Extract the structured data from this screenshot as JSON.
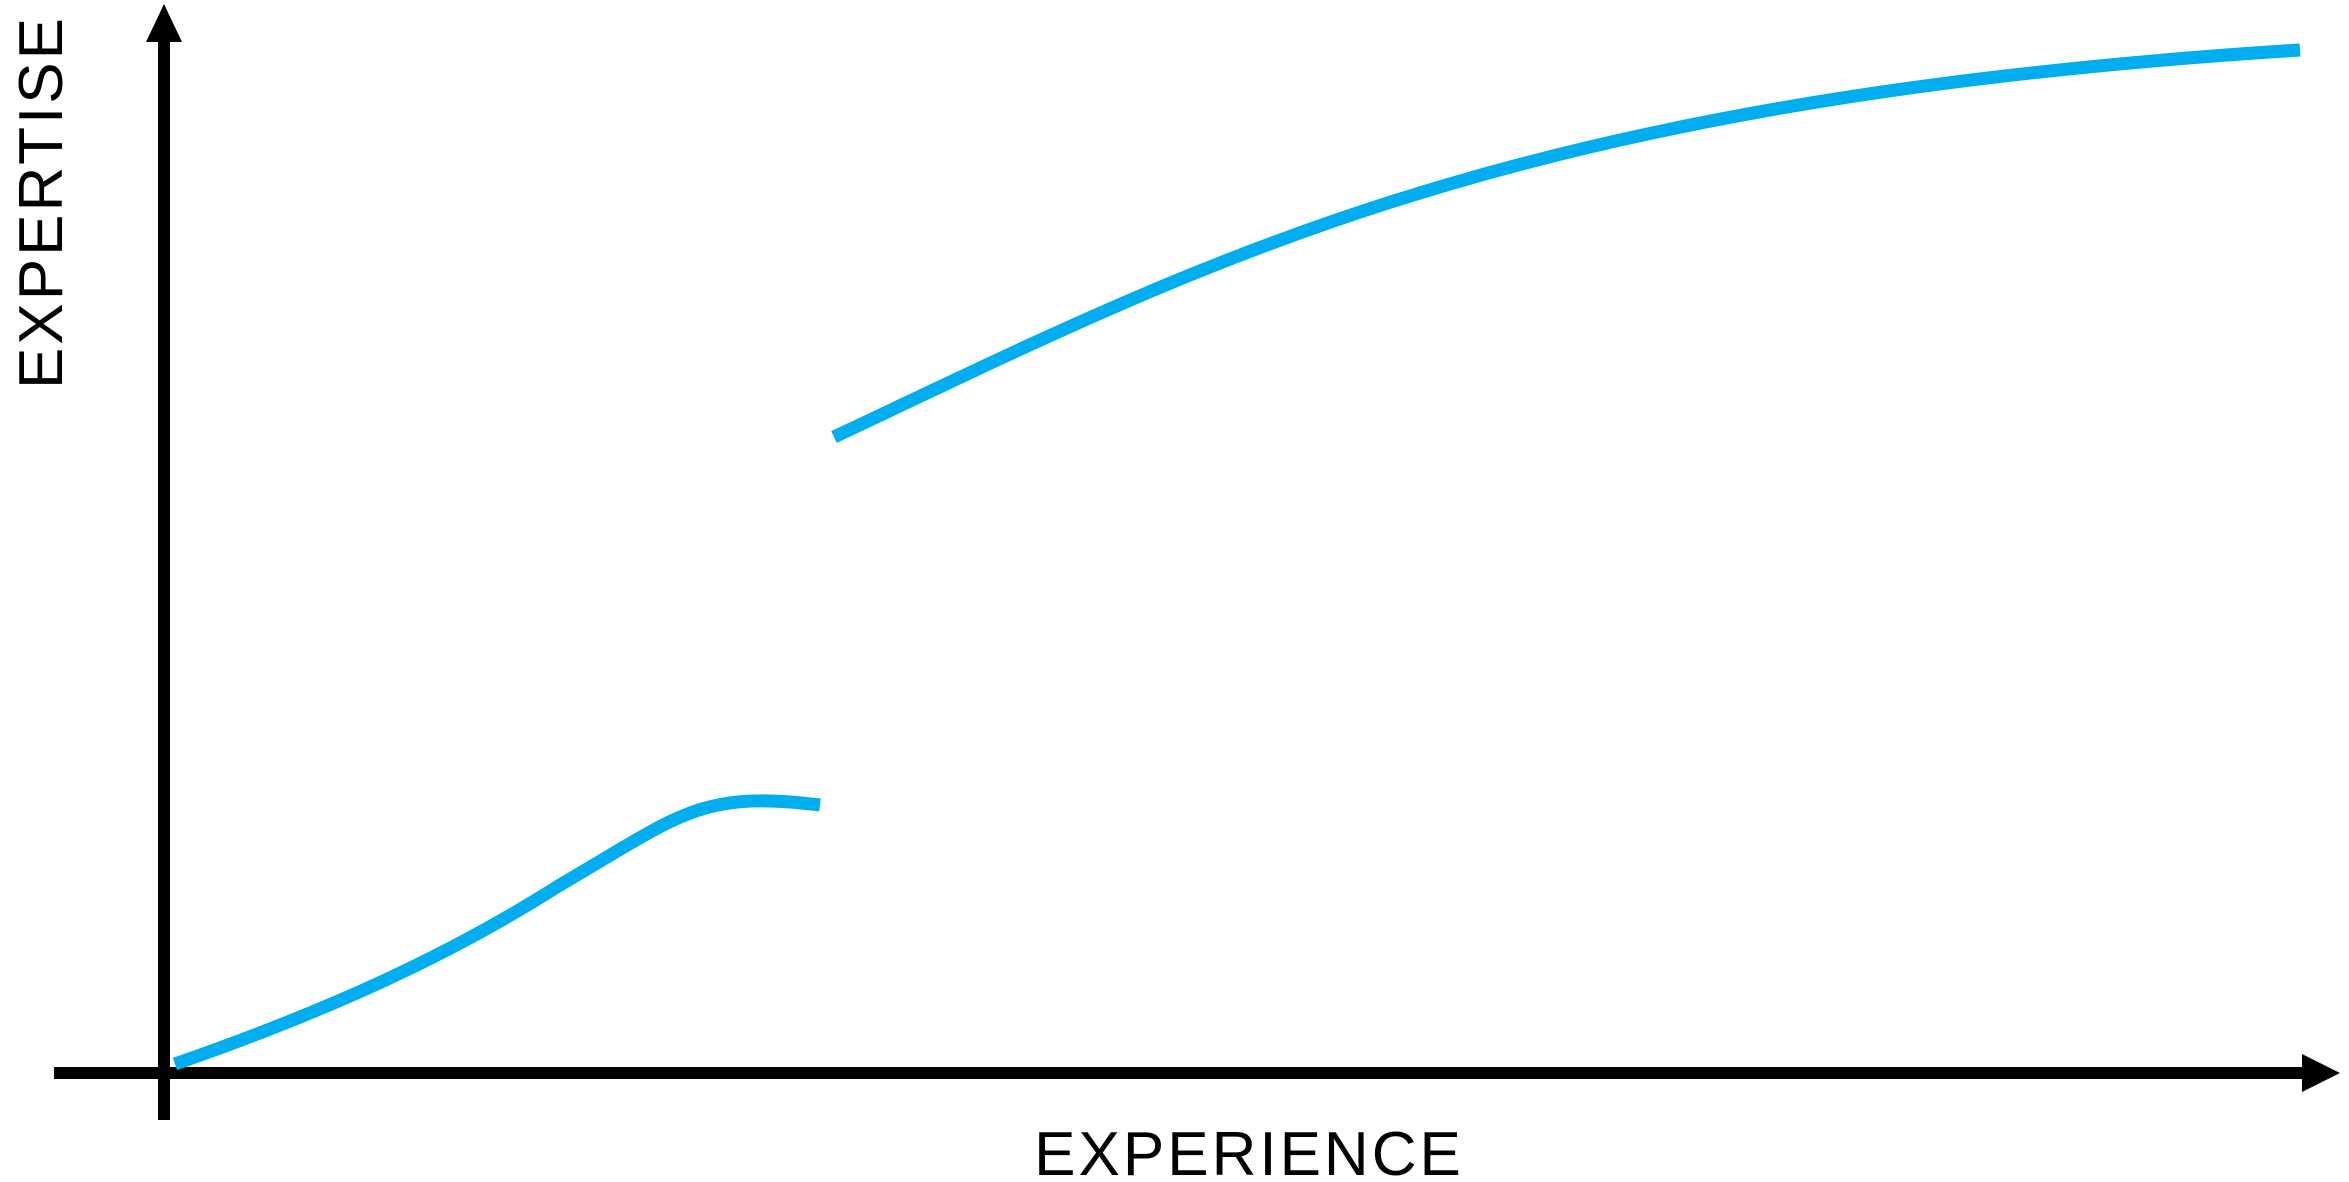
{
  "diagram": {
    "x_axis_label": "EXPERIENCE",
    "y_axis_label": "EXPERTISE",
    "colors": {
      "axis": "#000000",
      "curve": "#00aeef",
      "background": "#ffffff"
    },
    "curves": [
      {
        "id": "early-curve"
      },
      {
        "id": "later-curve"
      }
    ]
  }
}
